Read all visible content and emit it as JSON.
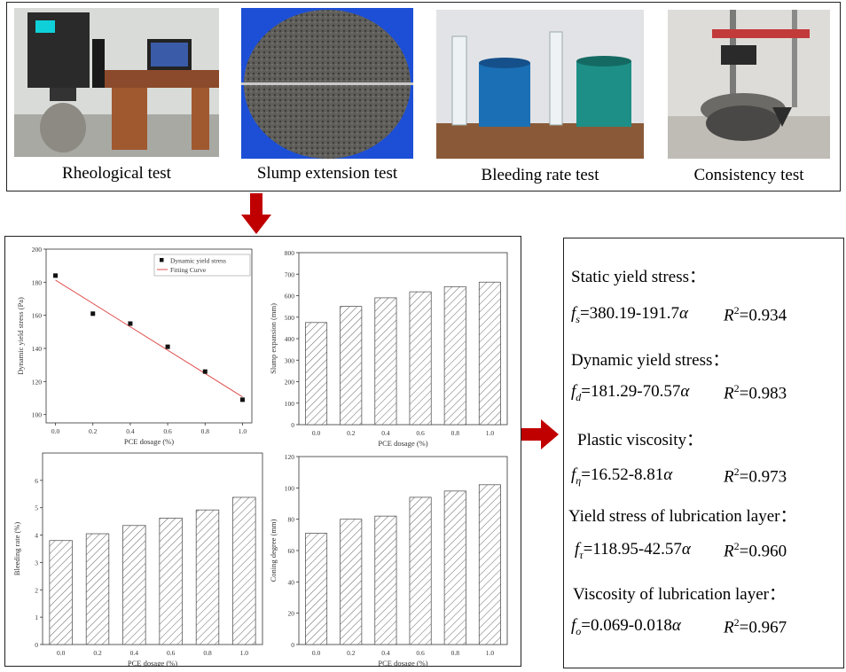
{
  "top_panel": {
    "tests": [
      {
        "caption": "Rheological test",
        "icon": "rheometer-photo"
      },
      {
        "caption": "Slump extension test",
        "icon": "slump-spread-photo"
      },
      {
        "caption": "Bleeding rate test",
        "icon": "bleeding-cylinders-photo"
      },
      {
        "caption": "Consistency test",
        "icon": "cone-apparatus-photo"
      }
    ]
  },
  "colors": {
    "arrow": "#c00000",
    "fit_line": "#e05050",
    "bar_hatch": "#555555"
  },
  "chart_data": [
    {
      "type": "scatter",
      "id": "yield",
      "xlabel": "PCE dosage (%)",
      "ylabel": "Dynamic yield stress (Pa)",
      "x": [
        0.0,
        0.2,
        0.4,
        0.6,
        0.8,
        1.0
      ],
      "x_ticks": [
        "0.0",
        "0.2",
        "0.4",
        "0.6",
        "0.8",
        "1.0"
      ],
      "y": [
        184,
        161,
        155,
        141,
        126,
        109
      ],
      "fit": {
        "x": [
          0.0,
          1.0
        ],
        "y": [
          181.29,
          110.72
        ]
      },
      "ylim": [
        95,
        200
      ],
      "y_ticks": [
        100,
        120,
        140,
        160,
        180,
        200
      ],
      "legend": {
        "points": "Dynamic yield stress",
        "line": "Fitting Curve",
        "placement": "top-right"
      }
    },
    {
      "type": "bar",
      "id": "slump",
      "xlabel": "PCE dosage (%)",
      "ylabel": "Slump expansion (mm)",
      "categories": [
        "0.0",
        "0.2",
        "0.4",
        "0.6",
        "0.8",
        "1.0"
      ],
      "values": [
        475,
        550,
        590,
        618,
        642,
        663
      ],
      "ylim": [
        0,
        800
      ],
      "y_ticks": [
        0,
        100,
        200,
        300,
        400,
        500,
        600,
        700,
        800
      ]
    },
    {
      "type": "bar",
      "id": "bleeding",
      "xlabel": "PCE dosage (%)",
      "ylabel": "Bleeding rate (%)",
      "categories": [
        "0.0",
        "0.2",
        "0.4",
        "0.6",
        "0.8",
        "1.0"
      ],
      "values": [
        3.8,
        4.05,
        4.35,
        4.62,
        4.92,
        5.38
      ],
      "ylim": [
        0,
        7
      ],
      "y_ticks": [
        0,
        1,
        2,
        3,
        4,
        5,
        6
      ]
    },
    {
      "type": "bar",
      "id": "coning",
      "xlabel": "PCE dosage (%)",
      "ylabel": "Coning degree (mm)",
      "categories": [
        "0.0",
        "0.2",
        "0.4",
        "0.6",
        "0.8",
        "1.0"
      ],
      "values": [
        71,
        80,
        82,
        94,
        98,
        102
      ],
      "ylim": [
        0,
        120
      ],
      "y_ticks": [
        0,
        20,
        40,
        60,
        80,
        100,
        120
      ]
    }
  ],
  "formulas": [
    {
      "heading": "Static yield stress：",
      "f_sub": "s",
      "expr": "=380.19-191.7",
      "var": "α",
      "r2": "=0.934"
    },
    {
      "heading": "Dynamic yield stress：",
      "f_sub": "d",
      "expr": "=181.29-70.57",
      "var": "α",
      "r2": "=0.983"
    },
    {
      "heading": "Plastic viscosity：",
      "f_sub": "η",
      "expr": "=16.52-8.81",
      "var": "α",
      "r2": "=0.973"
    },
    {
      "heading": "Yield stress of  lubrication layer：",
      "f_sub": "τ",
      "expr": "=118.95-42.57",
      "var": "α",
      "r2": "=0.960"
    },
    {
      "heading": "Viscosity of lubrication layer：",
      "f_sub": "o",
      "expr": "=0.069-0.018",
      "var": "α",
      "r2": "=0.967"
    }
  ],
  "r2_label": {
    "base": "R",
    "sup": "2"
  },
  "f_label": "f"
}
